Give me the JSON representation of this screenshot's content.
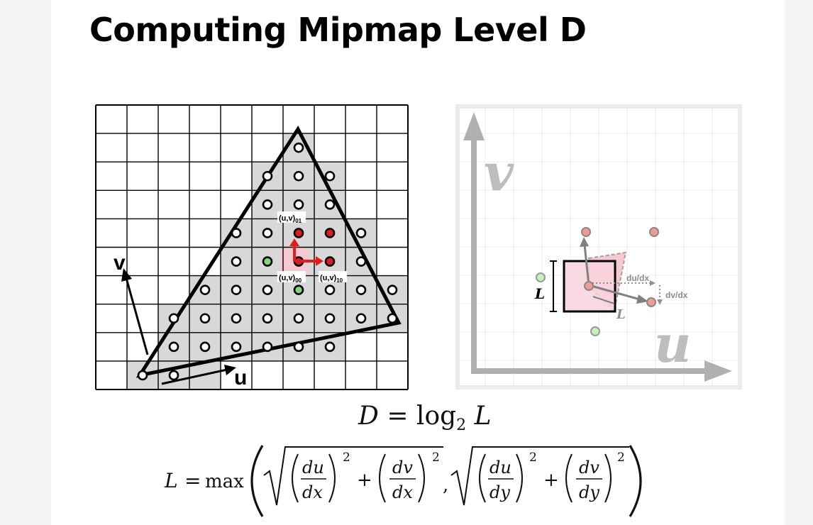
{
  "slide": {
    "title": "Computing Mipmap Level D"
  },
  "left_diagram": {
    "axis_v_label": "v",
    "axis_u_label": "u",
    "sample_label_01": "(u,v)",
    "sample_label_01_sub": "01",
    "sample_label_00": "(u,v)",
    "sample_label_00_sub": "00",
    "sample_label_10": "(u,v)",
    "sample_label_10_sub": "10",
    "colors": {
      "covered_cell": "#d8d8d8",
      "highlight_cell": "#f6c9d2",
      "red_sample": "#e01c1c",
      "green_sample": "#7ed87a",
      "arrow": "#e01c1c"
    }
  },
  "right_diagram": {
    "axis_v_label": "v",
    "axis_u_label": "u",
    "du_dx_label": "du/dx",
    "dv_dx_label": "dv/dx",
    "L_label_box": "L",
    "L_label_diag": "L",
    "colors": {
      "axis": "#b0b0b0",
      "sample_pink": "#f29b96",
      "sample_green": "#c6f0b8",
      "box_fill": "#f9d3dd"
    }
  },
  "equations": {
    "eq1_lhs": "D",
    "eq1_eq": " = log",
    "eq1_sub": "2",
    "eq1_rhs": " L",
    "eq2_lhs": "L",
    "eq2_eq": "=",
    "eq2_max": "max",
    "du": "du",
    "dv": "dv",
    "dx": "dx",
    "dy": "dy",
    "plus": "+",
    "comma": ",",
    "exp": "2"
  }
}
